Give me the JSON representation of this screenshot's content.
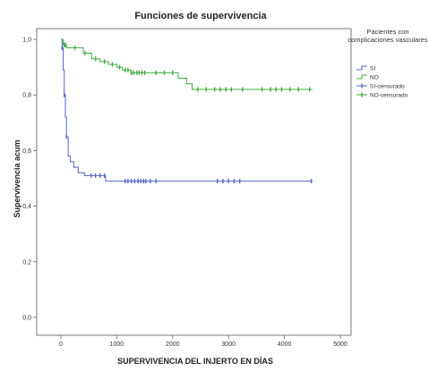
{
  "chart_data": {
    "type": "line",
    "title": "Funciones de supervivencia",
    "xlabel": "SUPERVIVENCIA DEL INJERTO EN DÍAS",
    "ylabel": "Supervivencia acum",
    "xlim": [
      0,
      5000
    ],
    "ylim": [
      0,
      1.05
    ],
    "x_ticks": [
      0,
      1000,
      2000,
      3000,
      4000,
      5000
    ],
    "x_tick_labels": [
      "0",
      "1000",
      "2000",
      "3000",
      "4000",
      "5000"
    ],
    "y_ticks": [
      0,
      0.2,
      0.4,
      0.6,
      0.8,
      1.0
    ],
    "y_tick_labels": [
      "0,0",
      "0,2",
      "0,4",
      "0,6",
      "0,8",
      "1,0"
    ],
    "grid": false,
    "legend_position": "right",
    "legend_title": "Pacientes con complicaciones vasculares",
    "legend_entries": [
      "SI",
      "NO",
      "SI-censurado",
      "NO-censurado"
    ],
    "series": [
      {
        "name": "SI",
        "color": "#5566cc",
        "steps": [
          [
            0,
            1.0
          ],
          [
            20,
            0.97
          ],
          [
            40,
            0.89
          ],
          [
            60,
            0.8
          ],
          [
            80,
            0.72
          ],
          [
            100,
            0.65
          ],
          [
            130,
            0.58
          ],
          [
            170,
            0.56
          ],
          [
            230,
            0.54
          ],
          [
            310,
            0.52
          ],
          [
            420,
            0.51
          ],
          [
            800,
            0.49
          ],
          [
            4500,
            0.49
          ]
        ],
        "censored": [
          20,
          60,
          100,
          540,
          620,
          700,
          780,
          1150,
          1200,
          1260,
          1320,
          1380,
          1430,
          1480,
          1520,
          1600,
          1700,
          2800,
          2900,
          3000,
          3100,
          3200,
          4480
        ]
      },
      {
        "name": "NO",
        "color": "#44aa44",
        "steps": [
          [
            0,
            1.0
          ],
          [
            40,
            0.98
          ],
          [
            100,
            0.97
          ],
          [
            400,
            0.95
          ],
          [
            550,
            0.93
          ],
          [
            700,
            0.92
          ],
          [
            850,
            0.91
          ],
          [
            1000,
            0.9
          ],
          [
            1100,
            0.89
          ],
          [
            1250,
            0.88
          ],
          [
            2100,
            0.86
          ],
          [
            2250,
            0.84
          ],
          [
            2350,
            0.82
          ],
          [
            4500,
            0.82
          ]
        ],
        "censored": [
          60,
          80,
          250,
          430,
          620,
          780,
          920,
          1050,
          1150,
          1200,
          1260,
          1300,
          1360,
          1400,
          1450,
          1500,
          1700,
          1850,
          2000,
          2450,
          2600,
          2750,
          2850,
          2950,
          3050,
          3250,
          3600,
          3750,
          3850,
          3950,
          4100,
          4250,
          4450
        ]
      }
    ]
  }
}
